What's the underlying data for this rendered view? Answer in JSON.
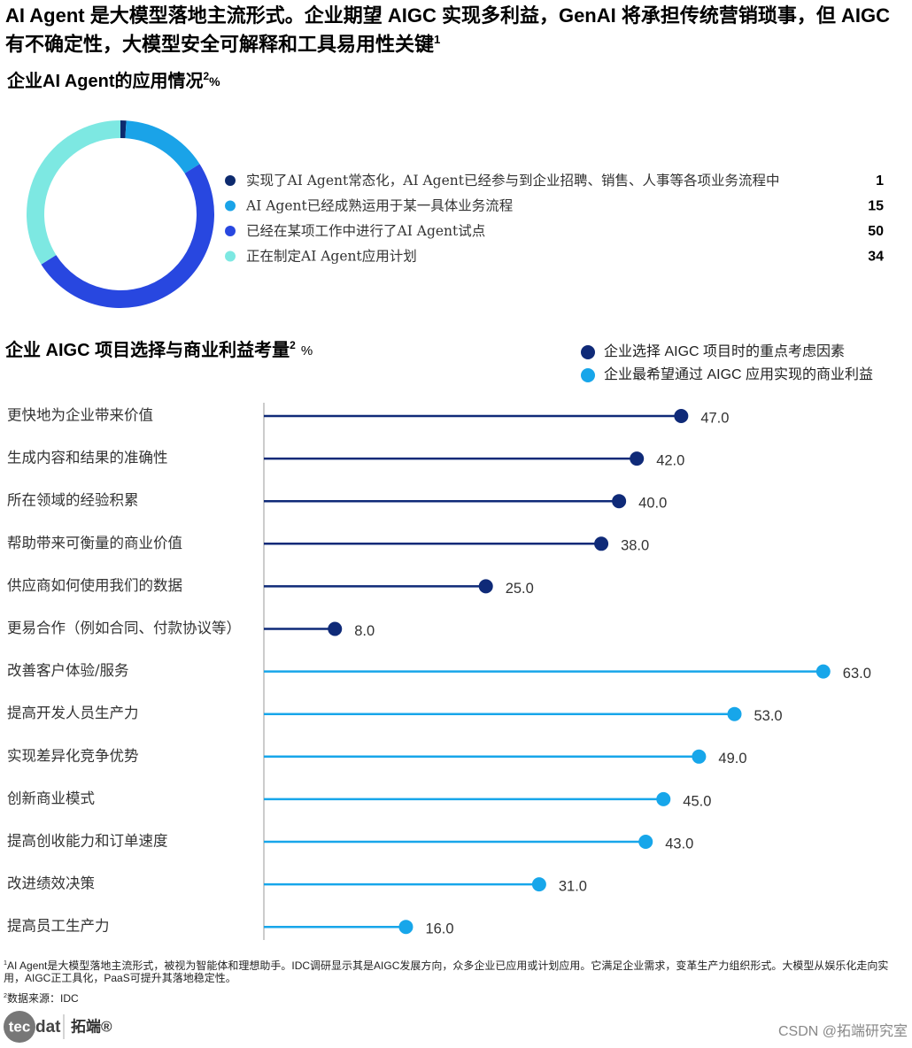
{
  "header": {
    "title": "AI Agent 是大模型落地主流形式。企业期望 AIGC 实现多利益，GenAI 将承担传统营销琐事，但 AIGC 有不确定性，大模型安全可解释和工具易用性关键",
    "note_ref": "1"
  },
  "chart_data": [
    {
      "type": "donut",
      "title": "企业AI Agent的应用情况",
      "title_ref": "2",
      "unit": "%",
      "categories": [
        "实现了AI Agent常态化，AI Agent已经参与到企业招聘、销售、人事等各项业务流程中",
        "AI Agent已经成熟运用于某一具体业务流程",
        "已经在某项工作中进行了AI Agent试点",
        "正在制定AI Agent应用计划"
      ],
      "values": [
        1,
        15,
        50,
        34
      ],
      "colors": [
        "#0d2a6e",
        "#1aa3e8",
        "#2847e0",
        "#7de8e2"
      ]
    },
    {
      "type": "lollipop",
      "title": "企业 AIGC 项目选择与商业利益考量",
      "title_ref": "2",
      "unit": "%",
      "categories": [
        "更快地为企业带来价值",
        "生成内容和结果的准确性",
        "所在领域的经验积累",
        "帮助带来可衡量的商业价值",
        "供应商如何使用我们的数据",
        "更易合作（例如合同、付款协议等）",
        "改善客户体验/服务",
        "提高开发人员生产力",
        "实现差异化竞争优势",
        "创新商业模式",
        "提高创收能力和订单速度",
        "改进绩效决策",
        "提高员工生产力"
      ],
      "series": [
        {
          "name": "企业选择 AIGC 项目时的重点考虑因素",
          "color": "#0f2a78",
          "values": [
            47,
            42,
            40,
            38,
            25,
            8,
            null,
            null,
            null,
            null,
            null,
            null,
            null
          ],
          "value_labels": [
            "47.0",
            "42.0",
            "40.0",
            "38.0",
            "25.0",
            "8.0",
            null,
            null,
            null,
            null,
            null,
            null,
            null
          ]
        },
        {
          "name": "企业最希望通过 AIGC 应用实现的商业利益",
          "color": "#17a6ea",
          "values": [
            null,
            null,
            null,
            null,
            null,
            null,
            63,
            53,
            49,
            45,
            43,
            31,
            16
          ],
          "value_labels": [
            null,
            null,
            null,
            null,
            null,
            null,
            "63.0",
            "53.0",
            "49.0",
            "45.0",
            "43.0",
            "31.0",
            "16.0"
          ]
        }
      ],
      "xlim": [
        0,
        70
      ]
    }
  ],
  "footnotes": [
    {
      "ref": "1",
      "text": "AI Agent是大模型落地主流形式，被视为智能体和理想助手。IDC调研显示其是AIGC发展方向，众多企业已应用或计划应用。它满足企业需求，变革生产力组织形式。大模型从娱乐化走向实用，AIGC正工具化，PaaS可提升其落地稳定性。"
    },
    {
      "ref": "2",
      "text": "数据来源：IDC"
    }
  ],
  "logo": {
    "mark": "tec",
    "name": "dat",
    "cn": "拓端®"
  },
  "watermark": "CSDN @拓端研究室"
}
